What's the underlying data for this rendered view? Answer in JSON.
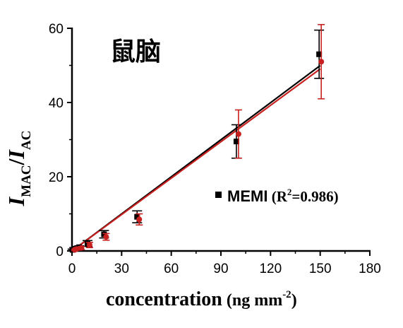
{
  "chart_data": {
    "type": "scatter",
    "title": "鼠脑",
    "xlabel": "concentration",
    "xlabel_units_prefix": "(ng mm",
    "xlabel_units_exp": "-2",
    "xlabel_units_suffix": ")",
    "ylabel_main1": "I",
    "ylabel_sub1": "MAC",
    "ylabel_slash": "/",
    "ylabel_main2": "I",
    "ylabel_sub2": "AC",
    "xlim": [
      0,
      180
    ],
    "ylim": [
      0,
      60
    ],
    "xticks": [
      0,
      30,
      60,
      90,
      120,
      150,
      180
    ],
    "yticks": [
      0,
      20,
      40,
      60
    ],
    "grid": false,
    "legend_position": "center-right",
    "series": [
      {
        "name": "MEMI",
        "marker": "square",
        "color": "#000000",
        "x": [
          1,
          2,
          5,
          10,
          20,
          40,
          100,
          150
        ],
        "y": [
          0.3,
          0.6,
          1.0,
          2.0,
          4.5,
          9.2,
          29.5,
          53.0
        ],
        "err": [
          0.2,
          0.3,
          0.4,
          0.8,
          1.0,
          1.6,
          4.5,
          6.5
        ]
      },
      {
        "marker": "circle",
        "color": "#c8201e",
        "x": [
          1,
          2,
          5,
          10,
          20,
          40,
          100,
          150
        ],
        "y": [
          0.3,
          0.5,
          0.8,
          1.6,
          3.8,
          8.5,
          31.5,
          51.0
        ],
        "err": [
          0.2,
          0.3,
          0.4,
          0.7,
          0.9,
          1.5,
          6.5,
          10.0
        ]
      }
    ],
    "fit_lines": [
      {
        "color": "#000000",
        "slope": 0.333,
        "intercept": 0.0
      },
      {
        "color": "#c8201e",
        "slope": 0.327,
        "intercept": 0.0
      }
    ],
    "legend": {
      "label": "MEMI",
      "r2_prefix": "(R",
      "r2_exp": "2",
      "r2_suffix": "=0.986)"
    }
  }
}
